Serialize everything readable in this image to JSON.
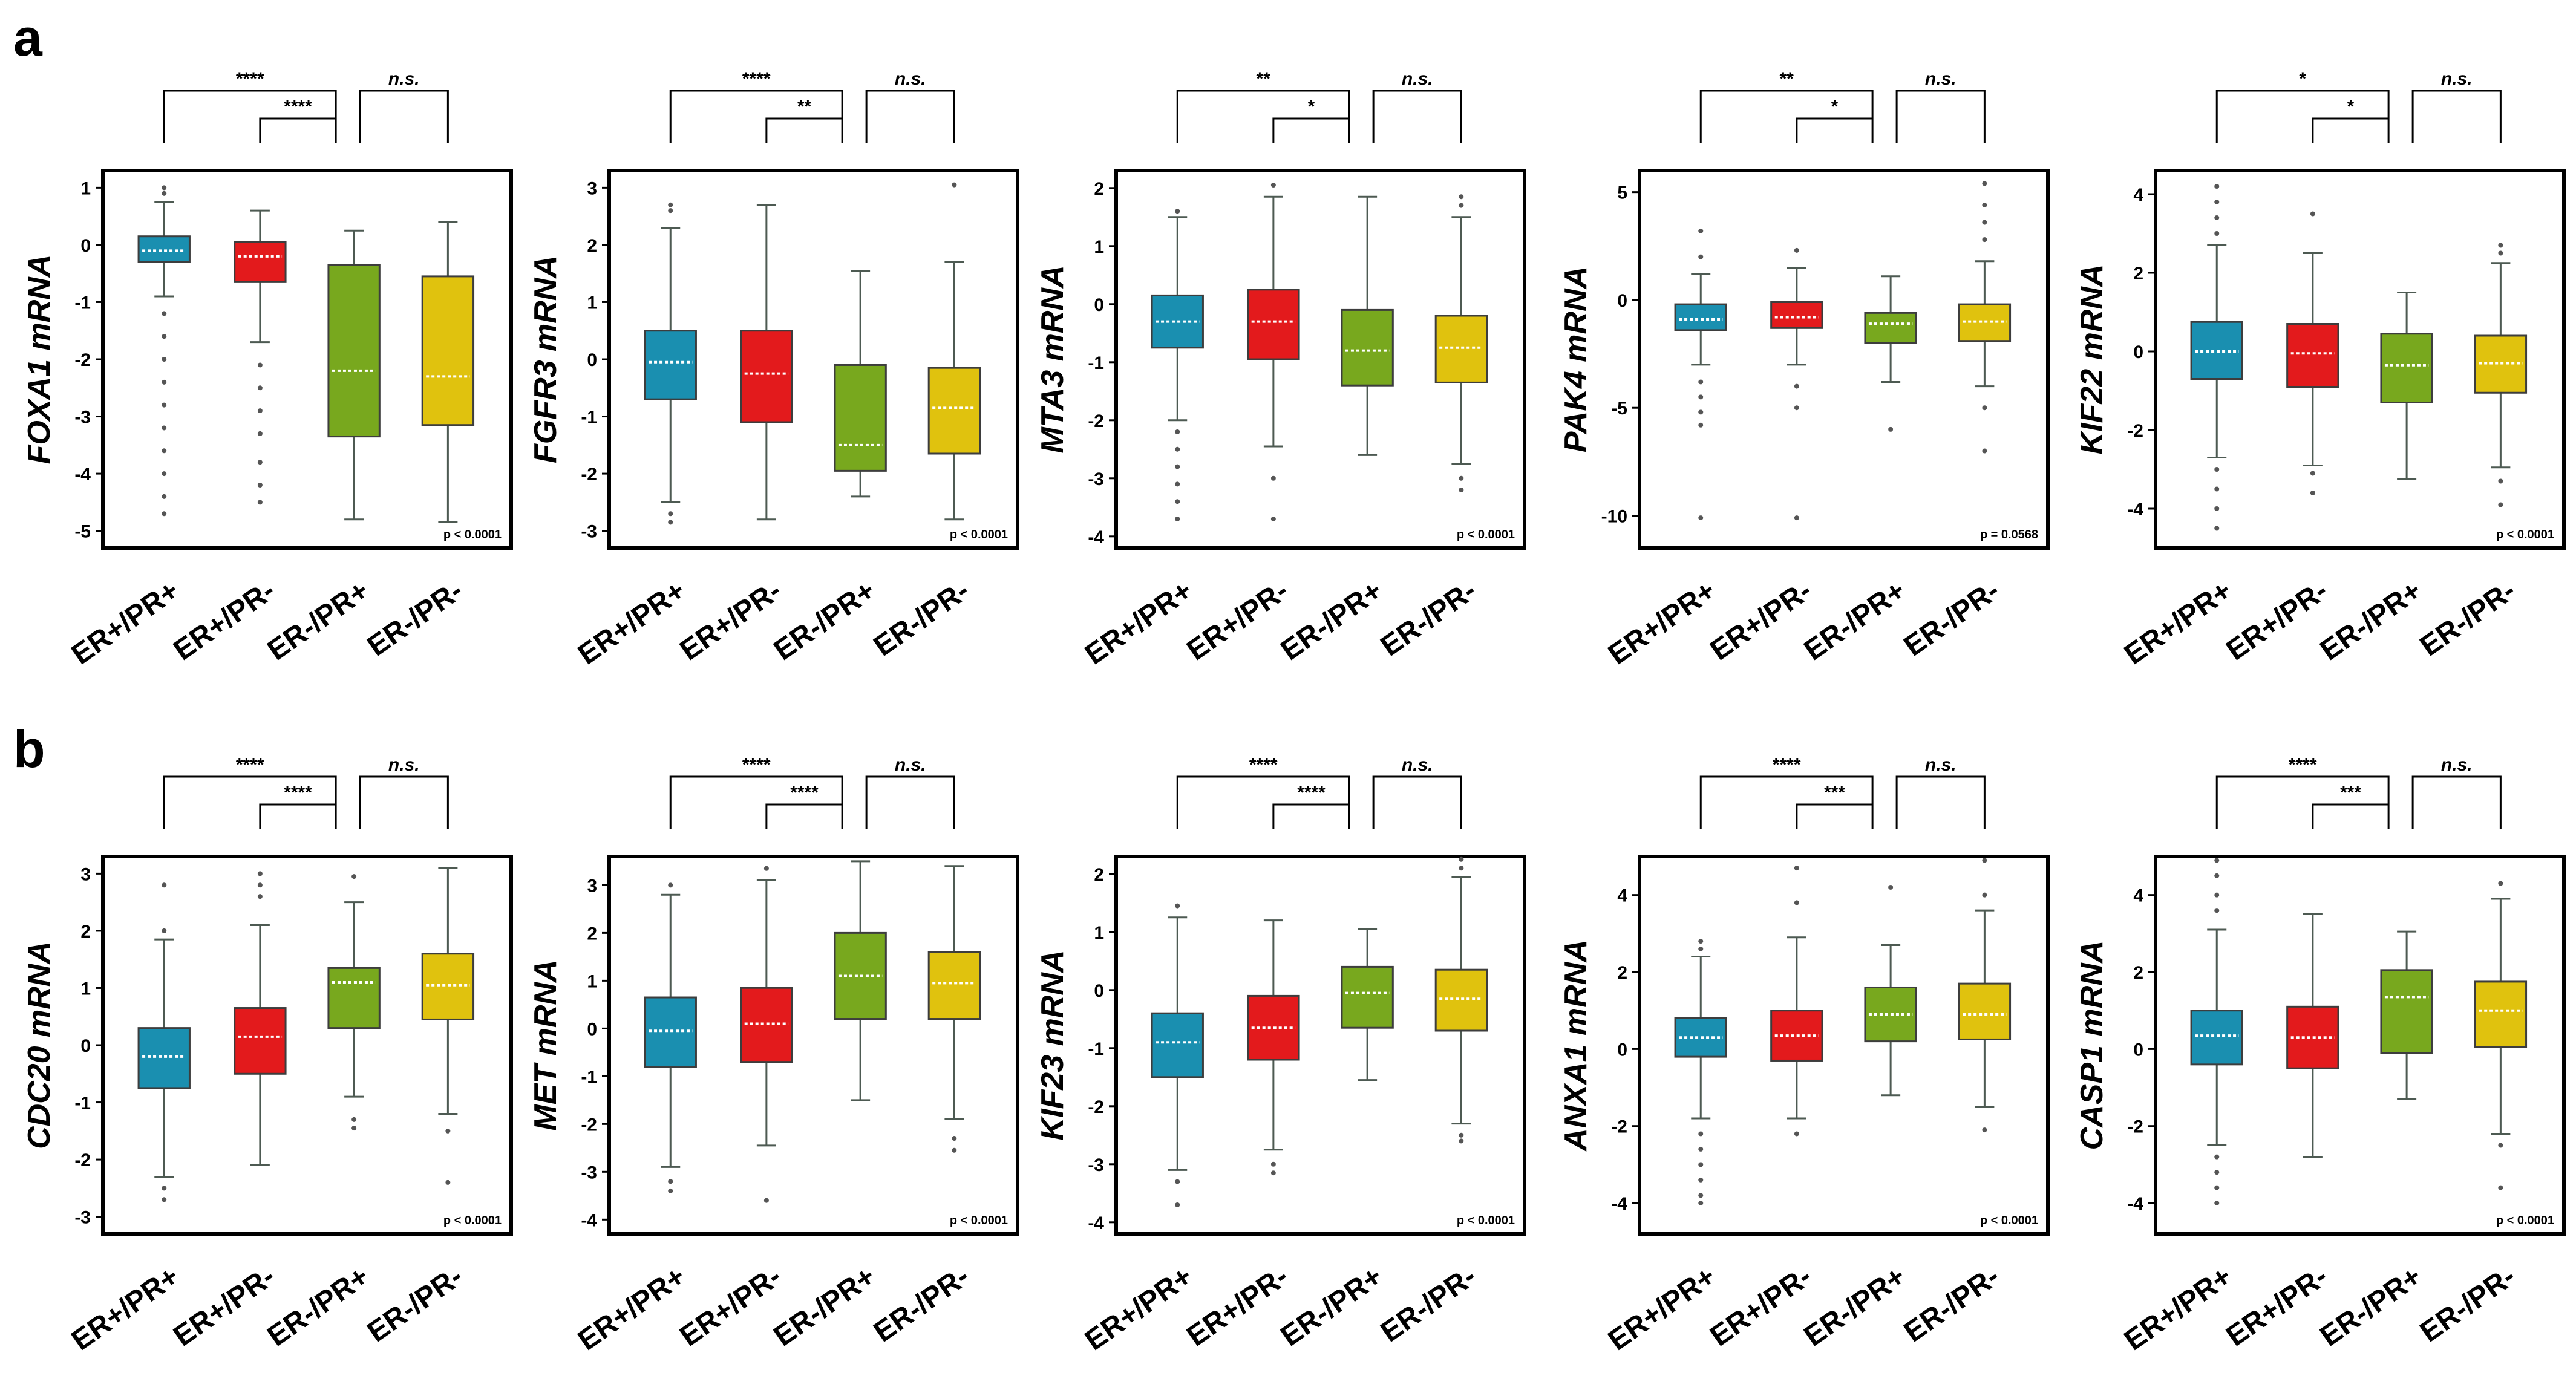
{
  "panel_labels": [
    "a",
    "b"
  ],
  "chart_data": [
    {
      "type": "box",
      "panel": "a",
      "ylabel": "FOXA1 mRNA",
      "categories": [
        "ER+/PR+",
        "ER+/PR-",
        "ER-/PR+",
        "ER-/PR-"
      ],
      "ylim": [
        -5.3,
        1.3
      ],
      "yticks": [
        1,
        0,
        -1,
        -2,
        -3,
        -4,
        -5
      ],
      "colors": [
        "#1a8fb0",
        "#e31a1c",
        "#78a81e",
        "#e0c20e"
      ],
      "boxes": [
        {
          "min": -0.9,
          "q1": -0.3,
          "median": -0.1,
          "q3": 0.15,
          "max": 0.75,
          "outliers": [
            1.0,
            0.9,
            -1.2,
            -1.6,
            -2.0,
            -2.4,
            -2.8,
            -3.2,
            -3.6,
            -4.0,
            -4.4,
            -4.7
          ]
        },
        {
          "min": -1.7,
          "q1": -0.65,
          "median": -0.2,
          "q3": 0.05,
          "max": 0.6,
          "outliers": [
            -2.1,
            -2.5,
            -2.9,
            -3.3,
            -3.8,
            -4.2,
            -4.5
          ]
        },
        {
          "min": -4.8,
          "q1": -3.35,
          "median": -2.2,
          "q3": -0.35,
          "max": 0.25,
          "outliers": []
        },
        {
          "min": -4.85,
          "q1": -3.15,
          "median": -2.3,
          "q3": -0.55,
          "max": 0.4,
          "outliers": []
        }
      ],
      "significance": {
        "top": "****",
        "inner": "****",
        "right": "n.s."
      },
      "pvalue": "p < 0.0001"
    },
    {
      "type": "box",
      "panel": "a",
      "ylabel": "FGFR3 mRNA",
      "categories": [
        "ER+/PR+",
        "ER+/PR-",
        "ER-/PR+",
        "ER-/PR-"
      ],
      "ylim": [
        -3.3,
        3.3
      ],
      "yticks": [
        3,
        2,
        1,
        0,
        -1,
        -2,
        -3
      ],
      "colors": [
        "#1a8fb0",
        "#e31a1c",
        "#78a81e",
        "#e0c20e"
      ],
      "boxes": [
        {
          "min": -2.5,
          "q1": -0.7,
          "median": -0.05,
          "q3": 0.5,
          "max": 2.3,
          "outliers": [
            2.7,
            2.6,
            -2.7,
            -2.85
          ]
        },
        {
          "min": -2.8,
          "q1": -1.1,
          "median": -0.25,
          "q3": 0.5,
          "max": 2.7,
          "outliers": []
        },
        {
          "min": -2.4,
          "q1": -1.95,
          "median": -1.5,
          "q3": -0.1,
          "max": 1.55,
          "outliers": []
        },
        {
          "min": -2.8,
          "q1": -1.65,
          "median": -0.85,
          "q3": -0.15,
          "max": 1.7,
          "outliers": [
            3.05
          ]
        }
      ],
      "significance": {
        "top": "****",
        "inner": "**",
        "right": "n.s."
      },
      "pvalue": "p < 0.0001"
    },
    {
      "type": "box",
      "panel": "a",
      "ylabel": "MTA3 mRNA",
      "categories": [
        "ER+/PR+",
        "ER+/PR-",
        "ER-/PR+",
        "ER-/PR-"
      ],
      "ylim": [
        -4.2,
        2.3
      ],
      "yticks": [
        2,
        1,
        0,
        -1,
        -2,
        -3,
        -4
      ],
      "colors": [
        "#1a8fb0",
        "#e31a1c",
        "#78a81e",
        "#e0c20e"
      ],
      "boxes": [
        {
          "min": -2.0,
          "q1": -0.75,
          "median": -0.3,
          "q3": 0.15,
          "max": 1.5,
          "outliers": [
            1.6,
            -2.2,
            -2.5,
            -2.8,
            -3.1,
            -3.4,
            -3.7
          ]
        },
        {
          "min": -2.45,
          "q1": -0.95,
          "median": -0.3,
          "q3": 0.25,
          "max": 1.85,
          "outliers": [
            2.05,
            -3.0,
            -3.7
          ]
        },
        {
          "min": -2.6,
          "q1": -1.4,
          "median": -0.8,
          "q3": -0.1,
          "max": 1.85,
          "outliers": []
        },
        {
          "min": -2.75,
          "q1": -1.35,
          "median": -0.75,
          "q3": -0.2,
          "max": 1.5,
          "outliers": [
            1.7,
            1.85,
            -3.0,
            -3.2
          ]
        }
      ],
      "significance": {
        "top": "**",
        "inner": "*",
        "right": "n.s."
      },
      "pvalue": "p < 0.0001"
    },
    {
      "type": "box",
      "panel": "a",
      "ylabel": "PAK4 mRNA",
      "categories": [
        "ER+/PR+",
        "ER+/PR-",
        "ER-/PR+",
        "ER-/PR-"
      ],
      "ylim": [
        -11.5,
        6.0
      ],
      "yticks": [
        5,
        0,
        -5,
        -10
      ],
      "colors": [
        "#1a8fb0",
        "#e31a1c",
        "#78a81e",
        "#e0c20e"
      ],
      "boxes": [
        {
          "min": -3.0,
          "q1": -1.4,
          "median": -0.9,
          "q3": -0.2,
          "max": 1.2,
          "outliers": [
            3.2,
            2.0,
            -3.8,
            -4.5,
            -5.2,
            -5.8,
            -10.1
          ]
        },
        {
          "min": -3.0,
          "q1": -1.3,
          "median": -0.8,
          "q3": -0.1,
          "max": 1.5,
          "outliers": [
            2.3,
            -4.0,
            -5.0,
            -10.1
          ]
        },
        {
          "min": -3.8,
          "q1": -2.0,
          "median": -1.1,
          "q3": -0.6,
          "max": 1.1,
          "outliers": [
            -6.0
          ]
        },
        {
          "min": -4.0,
          "q1": -1.9,
          "median": -1.0,
          "q3": -0.2,
          "max": 1.8,
          "outliers": [
            2.8,
            3.6,
            4.4,
            5.4,
            -5.0,
            -7.0
          ]
        }
      ],
      "significance": {
        "top": "**",
        "inner": "*",
        "right": "n.s."
      },
      "pvalue": "p = 0.0568"
    },
    {
      "type": "box",
      "panel": "a",
      "ylabel": "KIF22 mRNA",
      "categories": [
        "ER+/PR+",
        "ER+/PR-",
        "ER-/PR+",
        "ER-/PR-"
      ],
      "ylim": [
        -5.0,
        4.6
      ],
      "yticks": [
        4,
        2,
        0,
        -2,
        -4
      ],
      "colors": [
        "#1a8fb0",
        "#e31a1c",
        "#78a81e",
        "#e0c20e"
      ],
      "boxes": [
        {
          "min": -2.7,
          "q1": -0.7,
          "median": 0.0,
          "q3": 0.75,
          "max": 2.7,
          "outliers": [
            3.0,
            3.4,
            3.8,
            4.2,
            -3.0,
            -3.5,
            -4.0,
            -4.5
          ]
        },
        {
          "min": -2.9,
          "q1": -0.9,
          "median": -0.05,
          "q3": 0.7,
          "max": 2.5,
          "outliers": [
            3.5,
            -3.1,
            -3.6
          ]
        },
        {
          "min": -3.25,
          "q1": -1.3,
          "median": -0.35,
          "q3": 0.45,
          "max": 1.5,
          "outliers": []
        },
        {
          "min": -2.95,
          "q1": -1.05,
          "median": -0.3,
          "q3": 0.4,
          "max": 2.25,
          "outliers": [
            2.5,
            2.7,
            -3.3,
            -3.9
          ]
        }
      ],
      "significance": {
        "top": "*",
        "inner": "*",
        "right": "n.s."
      },
      "pvalue": "p < 0.0001"
    },
    {
      "type": "box",
      "panel": "b",
      "ylabel": "CDC20 mRNA",
      "categories": [
        "ER+/PR+",
        "ER+/PR-",
        "ER-/PR+",
        "ER-/PR-"
      ],
      "ylim": [
        -3.3,
        3.3
      ],
      "yticks": [
        3,
        2,
        1,
        0,
        -1,
        -2,
        -3
      ],
      "colors": [
        "#1a8fb0",
        "#e31a1c",
        "#78a81e",
        "#e0c20e"
      ],
      "boxes": [
        {
          "min": -2.3,
          "q1": -0.75,
          "median": -0.2,
          "q3": 0.3,
          "max": 1.85,
          "outliers": [
            2.8,
            2.0,
            -2.5,
            -2.7
          ]
        },
        {
          "min": -2.1,
          "q1": -0.5,
          "median": 0.15,
          "q3": 0.65,
          "max": 2.1,
          "outliers": [
            2.6,
            2.8,
            3.0
          ]
        },
        {
          "min": -0.9,
          "q1": 0.3,
          "median": 1.1,
          "q3": 1.35,
          "max": 2.5,
          "outliers": [
            2.95,
            -1.3,
            -1.45
          ]
        },
        {
          "min": -1.2,
          "q1": 0.45,
          "median": 1.05,
          "q3": 1.6,
          "max": 3.1,
          "outliers": [
            -1.5,
            -2.4
          ]
        }
      ],
      "significance": {
        "top": "****",
        "inner": "****",
        "right": "n.s."
      },
      "pvalue": "p < 0.0001"
    },
    {
      "type": "box",
      "panel": "b",
      "ylabel": "MET mRNA",
      "categories": [
        "ER+/PR+",
        "ER+/PR-",
        "ER-/PR+",
        "ER-/PR-"
      ],
      "ylim": [
        -4.3,
        3.6
      ],
      "yticks": [
        3,
        2,
        1,
        0,
        -1,
        -2,
        -3,
        -4
      ],
      "colors": [
        "#1a8fb0",
        "#e31a1c",
        "#78a81e",
        "#e0c20e"
      ],
      "boxes": [
        {
          "min": -2.9,
          "q1": -0.8,
          "median": -0.05,
          "q3": 0.65,
          "max": 2.8,
          "outliers": [
            3.0,
            -3.2,
            -3.4
          ]
        },
        {
          "min": -2.45,
          "q1": -0.7,
          "median": 0.1,
          "q3": 0.85,
          "max": 3.1,
          "outliers": [
            3.35,
            -3.6
          ]
        },
        {
          "min": -1.5,
          "q1": 0.2,
          "median": 1.1,
          "q3": 2.0,
          "max": 3.5,
          "outliers": []
        },
        {
          "min": -1.9,
          "q1": 0.2,
          "median": 0.95,
          "q3": 1.6,
          "max": 3.4,
          "outliers": [
            -2.3,
            -2.55
          ]
        }
      ],
      "significance": {
        "top": "****",
        "inner": "****",
        "right": "n.s."
      },
      "pvalue": "p < 0.0001"
    },
    {
      "type": "box",
      "panel": "b",
      "ylabel": "KIF23 mRNA",
      "categories": [
        "ER+/PR+",
        "ER+/PR-",
        "ER-/PR+",
        "ER-/PR-"
      ],
      "ylim": [
        -4.2,
        2.3
      ],
      "yticks": [
        2,
        1,
        0,
        -1,
        -2,
        -3,
        -4
      ],
      "colors": [
        "#1a8fb0",
        "#e31a1c",
        "#78a81e",
        "#e0c20e"
      ],
      "boxes": [
        {
          "min": -3.1,
          "q1": -1.5,
          "median": -0.9,
          "q3": -0.4,
          "max": 1.25,
          "outliers": [
            1.45,
            -3.3,
            -3.7
          ]
        },
        {
          "min": -2.75,
          "q1": -1.2,
          "median": -0.65,
          "q3": -0.1,
          "max": 1.2,
          "outliers": [
            -3.0,
            -3.15
          ]
        },
        {
          "min": -1.55,
          "q1": -0.65,
          "median": -0.05,
          "q3": 0.4,
          "max": 1.05,
          "outliers": []
        },
        {
          "min": -2.3,
          "q1": -0.7,
          "median": -0.15,
          "q3": 0.35,
          "max": 1.95,
          "outliers": [
            2.1,
            2.25,
            -2.5,
            -2.6
          ]
        }
      ],
      "significance": {
        "top": "****",
        "inner": "****",
        "right": "n.s."
      },
      "pvalue": "p < 0.0001"
    },
    {
      "type": "box",
      "panel": "b",
      "ylabel": "ANXA1 mRNA",
      "categories": [
        "ER+/PR+",
        "ER+/PR-",
        "ER-/PR+",
        "ER-/PR-"
      ],
      "ylim": [
        -4.8,
        5.0
      ],
      "yticks": [
        4,
        2,
        0,
        -2,
        -4
      ],
      "colors": [
        "#1a8fb0",
        "#e31a1c",
        "#78a81e",
        "#e0c20e"
      ],
      "boxes": [
        {
          "min": -1.8,
          "q1": -0.2,
          "median": 0.3,
          "q3": 0.8,
          "max": 2.4,
          "outliers": [
            2.8,
            2.6,
            -2.2,
            -2.6,
            -3.0,
            -3.4,
            -3.8,
            -4.0
          ]
        },
        {
          "min": -1.8,
          "q1": -0.3,
          "median": 0.35,
          "q3": 1.0,
          "max": 2.9,
          "outliers": [
            3.8,
            4.7,
            -2.2
          ]
        },
        {
          "min": -1.2,
          "q1": 0.2,
          "median": 0.9,
          "q3": 1.6,
          "max": 2.7,
          "outliers": [
            4.2
          ]
        },
        {
          "min": -1.5,
          "q1": 0.25,
          "median": 0.9,
          "q3": 1.7,
          "max": 3.6,
          "outliers": [
            4.0,
            4.9,
            -2.1
          ]
        }
      ],
      "significance": {
        "top": "****",
        "inner": "***",
        "right": "n.s."
      },
      "pvalue": "p < 0.0001"
    },
    {
      "type": "box",
      "panel": "b",
      "ylabel": "CASP1 mRNA",
      "categories": [
        "ER+/PR+",
        "ER+/PR-",
        "ER-/PR+",
        "ER-/PR-"
      ],
      "ylim": [
        -4.8,
        5.0
      ],
      "yticks": [
        4,
        2,
        0,
        -2,
        -4
      ],
      "colors": [
        "#1a8fb0",
        "#e31a1c",
        "#78a81e",
        "#e0c20e"
      ],
      "boxes": [
        {
          "min": -2.5,
          "q1": -0.4,
          "median": 0.35,
          "q3": 1.0,
          "max": 3.1,
          "outliers": [
            3.6,
            4.0,
            4.5,
            4.9,
            -2.8,
            -3.2,
            -3.6,
            -4.0
          ]
        },
        {
          "min": -2.8,
          "q1": -0.5,
          "median": 0.3,
          "q3": 1.1,
          "max": 3.5,
          "outliers": []
        },
        {
          "min": -1.3,
          "q1": -0.1,
          "median": 1.35,
          "q3": 2.05,
          "max": 3.05,
          "outliers": []
        },
        {
          "min": -2.2,
          "q1": 0.05,
          "median": 1.0,
          "q3": 1.75,
          "max": 3.9,
          "outliers": [
            4.3,
            -2.5,
            -3.6
          ]
        }
      ],
      "significance": {
        "top": "****",
        "inner": "***",
        "right": "n.s."
      },
      "pvalue": "p < 0.0001"
    }
  ]
}
